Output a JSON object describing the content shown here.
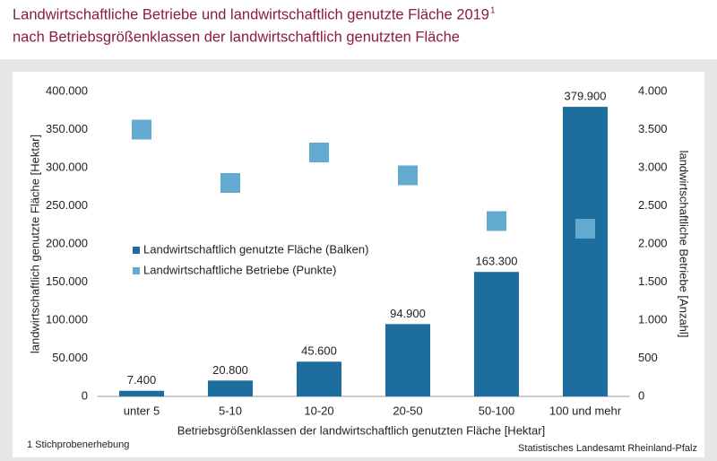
{
  "chart_data": {
    "type": "bar",
    "title": "Landwirtschaftliche Betriebe und landwirtschaftlich genutzte Fläche 2019",
    "title_superscript": "1",
    "subtitle": "nach Betriebsgrößenklassen der landwirtschaftlich genutzten Fläche",
    "x_label": "Betriebsgrößenklassen der landwirtschaftlich genutzten Fläche [Hektar]",
    "y_label": "landwirtschaftlich genutzte Fläche [Hektar]",
    "y2_label": "landwirtschaftliche Betriebe [Anzahl]",
    "footnote": "1 Stichprobenerhebung",
    "source": "Statistisches Landesamt Rheinland-Pfalz",
    "categories": [
      "unter 5",
      "5-10",
      "10-20",
      "20-50",
      "50-100",
      "100 und mehr"
    ],
    "series": [
      {
        "name": "Landwirtschaftlich genutzte Fläche (Balken)",
        "type": "bar",
        "color": "#1d6d9e",
        "values": [
          7400,
          20800,
          45600,
          94900,
          163300,
          379900
        ],
        "value_labels": [
          "7.400",
          "20.800",
          "45.600",
          "94.900",
          "163.300",
          "379.900"
        ]
      },
      {
        "name": "Landwirtschaftliche Betriebe (Punkte)",
        "type": "scatter",
        "color": "#62aad0",
        "axis": "y2",
        "values": [
          3500,
          2800,
          3200,
          2900,
          2300,
          2200
        ]
      }
    ],
    "ylim": [
      0,
      400000
    ],
    "yticks": [
      0,
      {
        "value": 50000,
        "label": "50.000"
      },
      {
        "value": 100000,
        "label": "100.000"
      },
      {
        "value": 150000,
        "label": "150.000"
      },
      {
        "value": 200000,
        "label": "200.000"
      },
      {
        "value": 250000,
        "label": "250.000"
      },
      {
        "value": 300000,
        "label": "300.000"
      },
      {
        "value": 350000,
        "label": "350.000"
      },
      {
        "value": 400000,
        "label": "400.000"
      }
    ],
    "y2lim": [
      0,
      4000
    ],
    "y2ticks": [
      0,
      500,
      {
        "value": 1000,
        "label": "1.000"
      },
      {
        "value": 1500,
        "label": "1.500"
      },
      {
        "value": 2000,
        "label": "2.000"
      },
      {
        "value": 2500,
        "label": "2.500"
      },
      {
        "value": 3000,
        "label": "3.000"
      },
      {
        "value": 3500,
        "label": "3.500"
      },
      {
        "value": 4000,
        "label": "4.000"
      }
    ],
    "grid": false
  }
}
